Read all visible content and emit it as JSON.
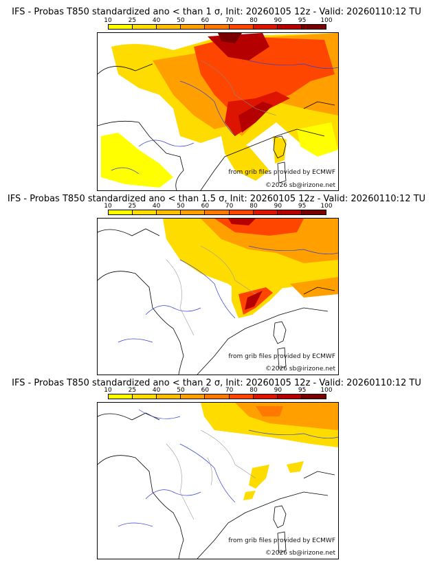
{
  "panels": [
    {
      "title": "IFS - Probas T850  standardized ano < than 1 σ, Init: 20260105 12z - Valid: 20260110:12 TU",
      "source": "from grib files provided by ECMWF",
      "copyright": "©2026 sb@irizone.net"
    },
    {
      "title": "IFS - Probas T850  standardized ano < than 1.5 σ, Init: 20260105 12z - Valid: 20260110:12 TU",
      "source": "from grib files provided by ECMWF",
      "copyright": "©2026 sb@irizone.net"
    },
    {
      "title": "IFS - Probas T850  standardized ano < than 2 σ, Init: 20260105 12z - Valid: 20260110:12 TU",
      "source": "from grib files provided by ECMWF",
      "copyright": "©2026 sb@irizone.net"
    }
  ],
  "legend": {
    "labels": [
      "10",
      "25",
      "40",
      "50",
      "60",
      "70",
      "80",
      "90",
      "95",
      "100"
    ],
    "colors": [
      "#ffff00",
      "#ffdc00",
      "#ffbe00",
      "#ffa000",
      "#ff7800",
      "#ff4600",
      "#dc1400",
      "#b40000",
      "#780000"
    ]
  }
}
